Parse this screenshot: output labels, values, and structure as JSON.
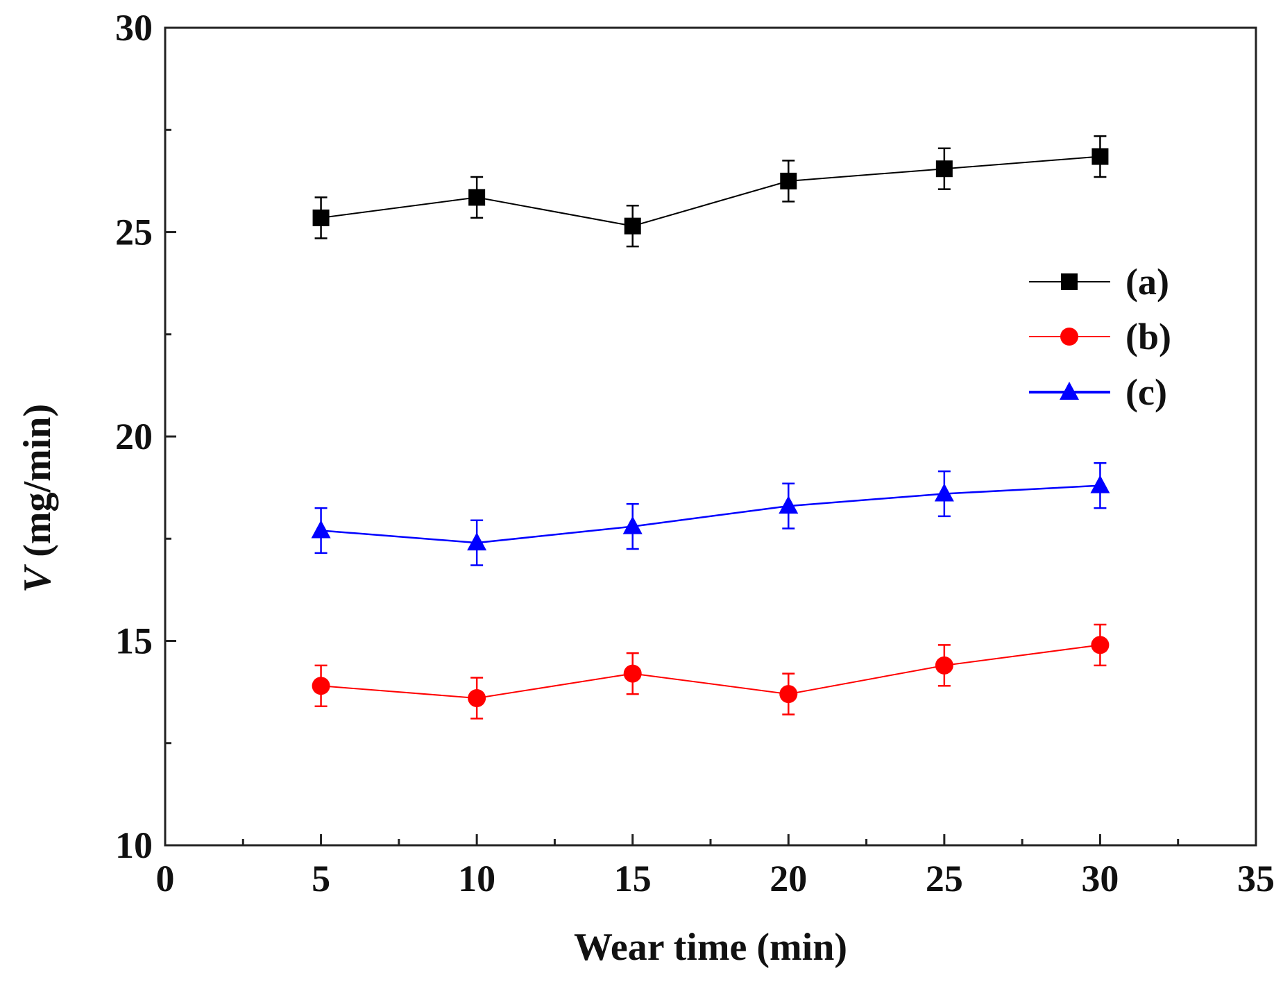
{
  "chart_data": {
    "type": "line",
    "title": "",
    "xlabel": "Wear time (min)",
    "ylabel_var": "V",
    "ylabel_unit": " (mg/min)",
    "xlim": [
      0,
      35
    ],
    "ylim": [
      10,
      30
    ],
    "x_major_ticks": [
      0,
      5,
      10,
      15,
      20,
      25,
      30,
      35
    ],
    "y_major_ticks": [
      10,
      15,
      20,
      25,
      30
    ],
    "grid": false,
    "legend_position": "right, upper-middle",
    "x": [
      5,
      10,
      15,
      20,
      25,
      30
    ],
    "series": [
      {
        "name": "(a)",
        "color": "#000000",
        "marker": "square",
        "values": [
          25.35,
          25.85,
          25.15,
          26.25,
          26.55,
          26.85
        ],
        "error": [
          0.5,
          0.5,
          0.5,
          0.5,
          0.5,
          0.5
        ]
      },
      {
        "name": "(b)",
        "color": "#ff0000",
        "marker": "circle",
        "values": [
          13.9,
          13.6,
          14.2,
          13.7,
          14.4,
          14.9
        ],
        "error": [
          0.5,
          0.5,
          0.5,
          0.5,
          0.5,
          0.5
        ]
      },
      {
        "name": "(c)",
        "color": "#0000ff",
        "marker": "triangle",
        "values": [
          17.7,
          17.4,
          17.8,
          18.3,
          18.6,
          18.8
        ],
        "error": [
          0.55,
          0.55,
          0.55,
          0.55,
          0.55,
          0.55
        ]
      }
    ]
  }
}
